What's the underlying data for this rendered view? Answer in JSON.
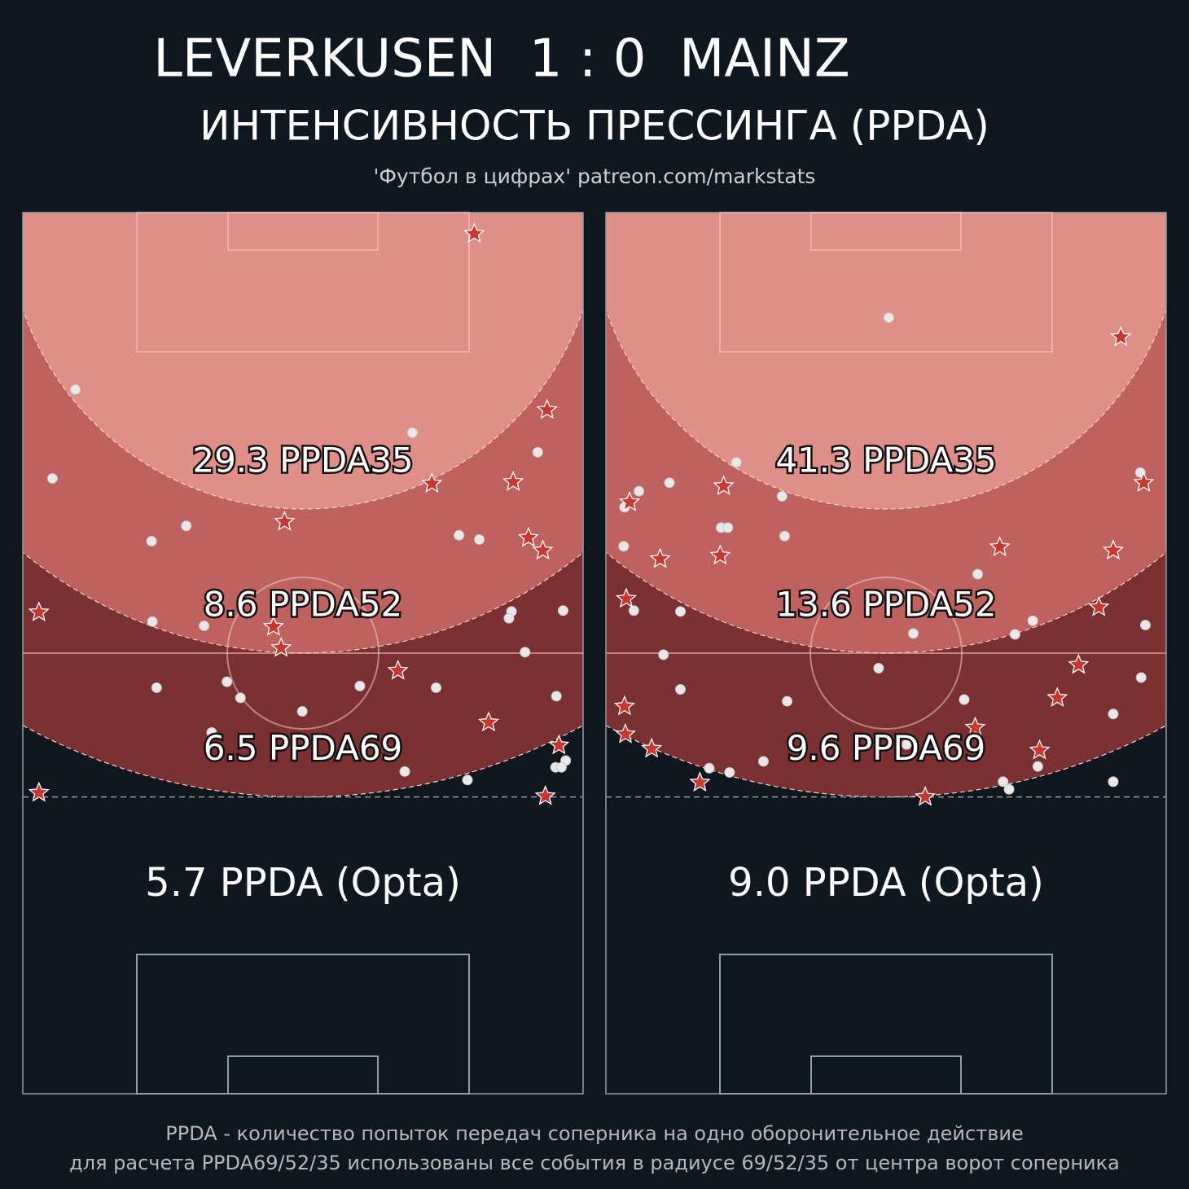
{
  "header": {
    "title": "LEVERKUSEN  1 : 0  MAINZ",
    "subtitle": "ИНТЕНСИВНОСТЬ ПРЕССИНГА (PPDA)",
    "source": "'Футбол в цифрах' patreon.com/markstats"
  },
  "panels": [
    {
      "zones": [
        {
          "label": "29.3 PPDA35",
          "radius": 35
        },
        {
          "label": "8.6 PPDA52",
          "radius": 52
        },
        {
          "label": "6.5 PPDA69",
          "radius": 69
        }
      ],
      "opta": "5.7 PPDA (Opta)",
      "passes": [
        [
          6.2,
          20.9
        ],
        [
          3.5,
          31.4
        ],
        [
          46.0,
          26.0
        ],
        [
          60.8,
          28.3
        ],
        [
          19.3,
          37.0
        ],
        [
          15.2,
          38.8
        ],
        [
          51.5,
          38.1
        ],
        [
          53.9,
          38.6
        ],
        [
          15.3,
          48.3
        ],
        [
          21.4,
          48.8
        ],
        [
          57.7,
          47.1
        ],
        [
          57.4,
          47.9
        ],
        [
          63.8,
          47.0
        ],
        [
          59.3,
          51.9
        ],
        [
          15.8,
          56.1
        ],
        [
          24.1,
          55.4
        ],
        [
          25.7,
          57.3
        ],
        [
          39.8,
          55.9
        ],
        [
          48.8,
          56.1
        ],
        [
          63.0,
          57.1
        ],
        [
          33.0,
          58.9
        ],
        [
          22.3,
          61.4
        ],
        [
          45.1,
          66.0
        ],
        [
          52.5,
          67.0
        ],
        [
          62.9,
          65.5
        ],
        [
          64.1,
          64.7
        ],
        [
          63.6,
          65.5
        ]
      ],
      "actions": [
        [
          53.3,
          2.5
        ],
        [
          61.9,
          23.3
        ],
        [
          48.3,
          32.0
        ],
        [
          57.9,
          31.8
        ],
        [
          30.9,
          36.5
        ],
        [
          59.7,
          38.4
        ],
        [
          61.4,
          39.9
        ],
        [
          1.9,
          47.2
        ],
        [
          29.6,
          48.9
        ],
        [
          30.5,
          51.4
        ],
        [
          44.3,
          54.1
        ],
        [
          55.0,
          60.2
        ],
        [
          63.3,
          62.9
        ],
        [
          1.9,
          68.5
        ],
        [
          61.7,
          68.9
        ]
      ]
    },
    {
      "zones": [
        {
          "label": "41.3 PPDA35",
          "radius": 35
        },
        {
          "label": "13.6 PPDA52",
          "radius": 52
        },
        {
          "label": "9.6 PPDA69",
          "radius": 69
        }
      ],
      "opta": "9.0 PPDA (Opta)",
      "passes": [
        [
          33.4,
          12.4
        ],
        [
          15.4,
          29.5
        ],
        [
          63.1,
          30.7
        ],
        [
          3.9,
          32.9
        ],
        [
          7.5,
          31.9
        ],
        [
          20.8,
          33.5
        ],
        [
          2.2,
          34.8
        ],
        [
          13.6,
          37.2
        ],
        [
          14.4,
          37.2
        ],
        [
          21.1,
          38.2
        ],
        [
          2.1,
          39.4
        ],
        [
          43.9,
          42.7
        ],
        [
          3.3,
          47.0
        ],
        [
          8.8,
          47.1
        ],
        [
          36.3,
          49.7
        ],
        [
          50.4,
          48.2
        ],
        [
          48.3,
          49.8
        ],
        [
          63.7,
          48.7
        ],
        [
          6.8,
          52.2
        ],
        [
          32.2,
          53.8
        ],
        [
          8.8,
          56.3
        ],
        [
          42.3,
          57.5
        ],
        [
          63.2,
          54.9
        ],
        [
          21.4,
          57.7
        ],
        [
          59.9,
          59.2
        ],
        [
          12.2,
          65.6
        ],
        [
          14.6,
          66.1
        ],
        [
          18.6,
          64.8
        ],
        [
          46.9,
          67.2
        ],
        [
          47.6,
          68.1
        ],
        [
          51.0,
          65.4
        ],
        [
          59.9,
          67.2
        ],
        [
          35.5,
          62.8
        ]
      ],
      "actions": [
        [
          60.8,
          14.7
        ],
        [
          13.9,
          32.3
        ],
        [
          63.5,
          31.9
        ],
        [
          2.8,
          34.2
        ],
        [
          46.5,
          39.5
        ],
        [
          6.4,
          40.9
        ],
        [
          13.5,
          40.5
        ],
        [
          59.9,
          39.9
        ],
        [
          2.4,
          45.6
        ],
        [
          58.2,
          46.6
        ],
        [
          55.8,
          53.4
        ],
        [
          53.3,
          57.3
        ],
        [
          2.2,
          58.3
        ],
        [
          43.6,
          60.8
        ],
        [
          2.3,
          61.6
        ],
        [
          5.4,
          63.3
        ],
        [
          51.2,
          63.5
        ],
        [
          11.1,
          67.3
        ],
        [
          37.7,
          69.0
        ]
      ]
    }
  ],
  "footer": [
    "PPDA - количество попыток передач соперника на одно оборонительное действие",
    "для расчета PPDA69/52/35 использованы все события в радиусе 69/52/35 от центра ворот соперника"
  ]
}
